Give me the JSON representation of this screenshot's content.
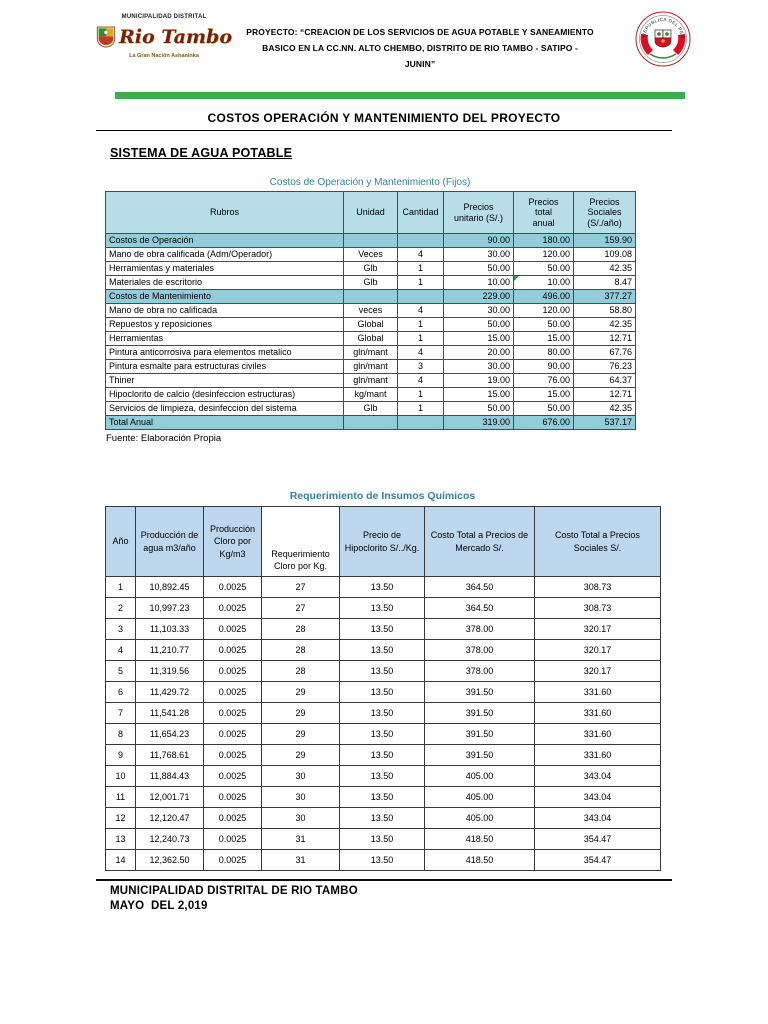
{
  "header": {
    "left_logo": {
      "top_text": "MUNICIPALIDAD DISTRITAL",
      "name": "Rio Tambo",
      "tagline": "La Gran Nación Ashaninka"
    },
    "project": {
      "lines": [
        "PROYECTO: “CREACION DE LOS SERVICIOS DE AGUA POTABLE Y SANEAMIENTO",
        "BASICO EN LA CC.NN. ALTO CHEMBO, DISTRITO DE RIO TAMBO - SATIPO -",
        "JUNIN”"
      ]
    },
    "right_seal_text": "REPUBLICA DEL PERU"
  },
  "title": "COSTOS OPERACIÓN Y MANTENIMIENTO DEL PROYECTO",
  "section_heading": "SISTEMA DE AGUA POTABLE",
  "table1": {
    "caption": "Costos de Operación y Mantenimiento (Fijos)",
    "headers": [
      "Rubros",
      "Unidad",
      "Cantidad",
      "Precios\nunitario (S/.)",
      "Precios\ntotal\nanual",
      "Precios\nSociales\n(S/./año)"
    ],
    "rows": [
      {
        "group": true,
        "rubro": "Costos de Operación",
        "unidad": "",
        "cantidad": "",
        "unitario": "90.00",
        "total": "180.00",
        "sociales": "159.90"
      },
      {
        "group": false,
        "rubro": "Mano de obra  calificada (Adm/Operador)",
        "unidad": "Veces",
        "cantidad": "4",
        "unitario": "30.00",
        "total": "120.00",
        "sociales": "109.08"
      },
      {
        "group": false,
        "rubro": "Herramientas y materiales",
        "unidad": "Glb",
        "cantidad": "1",
        "unitario": "50.00",
        "total": "50.00",
        "sociales": "42.35"
      },
      {
        "group": false,
        "rubro": "Materiales de escritorio",
        "unidad": "Glb",
        "cantidad": "1",
        "unitario": "10.00",
        "total": "10.00",
        "sociales": "8.47",
        "marker": true
      },
      {
        "group": true,
        "rubro": "Costos de Mantenimiento",
        "unidad": "",
        "cantidad": "",
        "unitario": "229.00",
        "total": "496.00",
        "sociales": "377.27"
      },
      {
        "group": false,
        "rubro": "Mano de obra no calificada",
        "unidad": "veces",
        "cantidad": "4",
        "unitario": "30.00",
        "total": "120.00",
        "sociales": "58.80"
      },
      {
        "group": false,
        "rubro": "Repuestos y reposiciones",
        "unidad": "Global",
        "cantidad": "1",
        "unitario": "50.00",
        "total": "50.00",
        "sociales": "42.35"
      },
      {
        "group": false,
        "rubro": "Herramientas",
        "unidad": "Global",
        "cantidad": "1",
        "unitario": "15.00",
        "total": "15.00",
        "sociales": "12.71"
      },
      {
        "group": false,
        "rubro": "Pintura anticorrosiva para elementos metalico",
        "unidad": "gln/mant",
        "cantidad": "4",
        "unitario": "20.00",
        "total": "80.00",
        "sociales": "67.76"
      },
      {
        "group": false,
        "rubro": "Pintura esmalte para estructuras civiles",
        "unidad": "gln/mant",
        "cantidad": "3",
        "unitario": "30.00",
        "total": "90.00",
        "sociales": "76.23"
      },
      {
        "group": false,
        "rubro": "Thiner",
        "unidad": "gln/mant",
        "cantidad": "4",
        "unitario": "19.00",
        "total": "76.00",
        "sociales": "64.37"
      },
      {
        "group": false,
        "rubro": "Hipoclorito de calcio (desinfeccion estructuras)",
        "unidad": "kg/mant",
        "cantidad": "1",
        "unitario": "15.00",
        "total": "15.00",
        "sociales": "12.71"
      },
      {
        "group": false,
        "rubro": "Servicios de limpieza, desinfeccion del sistema",
        "unidad": "Glb",
        "cantidad": "1",
        "unitario": "50.00",
        "total": "50.00",
        "sociales": "42.35"
      },
      {
        "group": true,
        "rubro": "Total Anual",
        "unidad": "",
        "cantidad": "",
        "unitario": "319.00",
        "total": "676.00",
        "sociales": "537.17"
      }
    ],
    "source_note": "Fuente: Elaboración Propia"
  },
  "table2": {
    "caption": "Requerimiento de Insumos Químicos",
    "headers": [
      "Año",
      "Producción de agua m3/año",
      "Producción Cloro por Kg/m3",
      "Requerimiento Cloro por Kg.",
      "Precio de Hipoclorito S/../Kg.",
      "Costo Total a Precios de Mercado S/.",
      "Costo Total a Precios Sociales S/."
    ],
    "rows": [
      [
        "1",
        "10,892.45",
        "0.0025",
        "27",
        "13.50",
        "364.50",
        "308.73"
      ],
      [
        "2",
        "10,997.23",
        "0.0025",
        "27",
        "13.50",
        "364.50",
        "308.73"
      ],
      [
        "3",
        "11,103.33",
        "0.0025",
        "28",
        "13.50",
        "378.00",
        "320.17"
      ],
      [
        "4",
        "11,210.77",
        "0.0025",
        "28",
        "13.50",
        "378.00",
        "320.17"
      ],
      [
        "5",
        "11,319.56",
        "0.0025",
        "28",
        "13.50",
        "378.00",
        "320.17"
      ],
      [
        "6",
        "11,429.72",
        "0.0025",
        "29",
        "13.50",
        "391.50",
        "331.60"
      ],
      [
        "7",
        "11,541.28",
        "0.0025",
        "29",
        "13.50",
        "391.50",
        "331.60"
      ],
      [
        "8",
        "11,654.23",
        "0.0025",
        "29",
        "13.50",
        "391.50",
        "331.60"
      ],
      [
        "9",
        "11,768.61",
        "0.0025",
        "29",
        "13.50",
        "391.50",
        "331.60"
      ],
      [
        "10",
        "11,884.43",
        "0.0025",
        "30",
        "13.50",
        "405.00",
        "343.04"
      ],
      [
        "11",
        "12,001.71",
        "0.0025",
        "30",
        "13.50",
        "405.00",
        "343.04"
      ],
      [
        "12",
        "12,120.47",
        "0.0025",
        "30",
        "13.50",
        "405.00",
        "343.04"
      ],
      [
        "13",
        "12,240.73",
        "0.0025",
        "31",
        "13.50",
        "418.50",
        "354.47"
      ],
      [
        "14",
        "12,362.50",
        "0.0025",
        "31",
        "13.50",
        "418.50",
        "354.47"
      ]
    ]
  },
  "footer": {
    "line1": "MUNICIPALIDAD DISTRITAL DE RIO TAMBO",
    "line2": "MAYO  DEL 2,019"
  },
  "icons": {
    "municipal_crest": "shield-crest",
    "peru_seal": "coat-of-arms-circle",
    "comment_marker": "green-triangle"
  },
  "colors": {
    "green_bar": "#3FAE49",
    "caption_teal": "#31849B",
    "table1_header_fill": "#B7DEE8",
    "table1_group_fill": "#92CDDC",
    "table2_header_fill": "#BDD7EE",
    "logo_text_red": "#7A1C12",
    "peru_red": "#D91023"
  }
}
